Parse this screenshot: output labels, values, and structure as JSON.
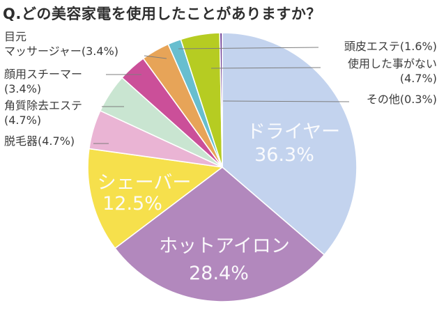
{
  "title": "Q.どの美容家電を使用したことがありますか？",
  "chart_data": {
    "type": "pie",
    "title": "Q.どの美容家電を使用したことがありますか？",
    "unit": "%",
    "start_angle_deg": 0,
    "direction": "clockwise",
    "segments": [
      {
        "label": "ドライヤー",
        "value": 36.3,
        "pct_text": "36.3%",
        "color": "#c3d3ee",
        "label_style": "inside"
      },
      {
        "label": "ホットアイロン",
        "value": 28.4,
        "pct_text": "28.4%",
        "color": "#b288bd",
        "label_style": "inside"
      },
      {
        "label": "シェーバー",
        "value": 12.5,
        "pct_text": "12.5%",
        "color": "#f6e04c",
        "label_style": "inside"
      },
      {
        "label": "脱毛器",
        "value": 4.7,
        "pct_text": "4.7%",
        "color": "#eab4d4",
        "label_style": "callout",
        "callout_lines": [
          "脱毛器(4.7%)"
        ]
      },
      {
        "label": "角質除去エステ",
        "value": 4.7,
        "pct_text": "4.7%",
        "color": "#c9e5d1",
        "label_style": "callout",
        "callout_lines": [
          "角質除去エステ",
          "(4.7%)"
        ]
      },
      {
        "label": "顔用スチーマー",
        "value": 3.4,
        "pct_text": "3.4%",
        "color": "#cb4f99",
        "label_style": "callout",
        "callout_lines": [
          "顔用スチーマー",
          "(3.4%)"
        ]
      },
      {
        "label": "目元マッサージャー",
        "value": 3.4,
        "pct_text": "3.4%",
        "color": "#e7a458",
        "label_style": "callout",
        "callout_lines": [
          "目元",
          "マッサージャー(3.4%)"
        ]
      },
      {
        "label": "頭皮エステ",
        "value": 1.6,
        "pct_text": "1.6%",
        "color": "#68becf",
        "label_style": "callout",
        "callout_lines": [
          "頭皮エステ(1.6%)"
        ]
      },
      {
        "label": "使用した事がない",
        "value": 4.7,
        "pct_text": "4.7%",
        "color": "#b6cc22",
        "label_style": "callout",
        "callout_lines": [
          "使用した事がない",
          "(4.7%)"
        ]
      },
      {
        "label": "その他",
        "value": 0.3,
        "pct_text": "0.3%",
        "color": "#6e3f93",
        "label_style": "callout",
        "callout_lines": [
          "その他(0.3%)"
        ]
      }
    ]
  }
}
